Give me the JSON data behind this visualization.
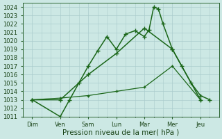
{
  "x_labels": [
    "Dim",
    "Ven",
    "Sam",
    "Lun",
    "Mar",
    "Mer",
    "Jeu"
  ],
  "day_positions": [
    0,
    3,
    6,
    9,
    12,
    15,
    18
  ],
  "lines": [
    {
      "x": [
        0,
        3,
        4,
        5,
        6,
        7,
        8,
        9,
        10,
        11,
        12,
        12.5,
        13,
        13.5,
        14,
        15,
        16,
        17,
        18,
        19
      ],
      "y": [
        1013.0,
        1011.0,
        1013.0,
        1015.0,
        1017.0,
        1018.8,
        1020.5,
        1019.0,
        1020.8,
        1021.2,
        1020.5,
        1021.3,
        1024.0,
        1023.8,
        1022.0,
        1019.0,
        1017.0,
        1015.0,
        1013.5,
        1013.0
      ],
      "color": "#1a6618",
      "linewidth": 1.1,
      "marker": "+",
      "markersize": 4
    },
    {
      "x": [
        0,
        3,
        6,
        9,
        12,
        15,
        18
      ],
      "y": [
        1013.0,
        1013.0,
        1016.0,
        1018.5,
        1021.5,
        1019.0,
        1013.0
      ],
      "color": "#1a6618",
      "linewidth": 1.1,
      "marker": "+",
      "markersize": 4
    },
    {
      "x": [
        0,
        3,
        6,
        9,
        12,
        15,
        18
      ],
      "y": [
        1013.0,
        1013.2,
        1013.5,
        1014.0,
        1014.5,
        1017.0,
        1013.0
      ],
      "color": "#1a6618",
      "linewidth": 0.9,
      "marker": "+",
      "markersize": 3.5
    }
  ],
  "ylim": [
    1011,
    1024.5
  ],
  "yticks": [
    1011,
    1012,
    1013,
    1014,
    1015,
    1016,
    1017,
    1018,
    1019,
    1020,
    1021,
    1022,
    1023,
    1024
  ],
  "xlim": [
    -0.5,
    20
  ],
  "background_color": "#cce8e4",
  "grid_color": "#aacccc",
  "grid_color_major": "#99bbbb",
  "xlabel": "Pression niveau de la mer( hPa )",
  "label_color": "#1a4418",
  "axis_color": "#2d6633",
  "tick_fontsize": 6,
  "xlabel_fontsize": 7.5
}
